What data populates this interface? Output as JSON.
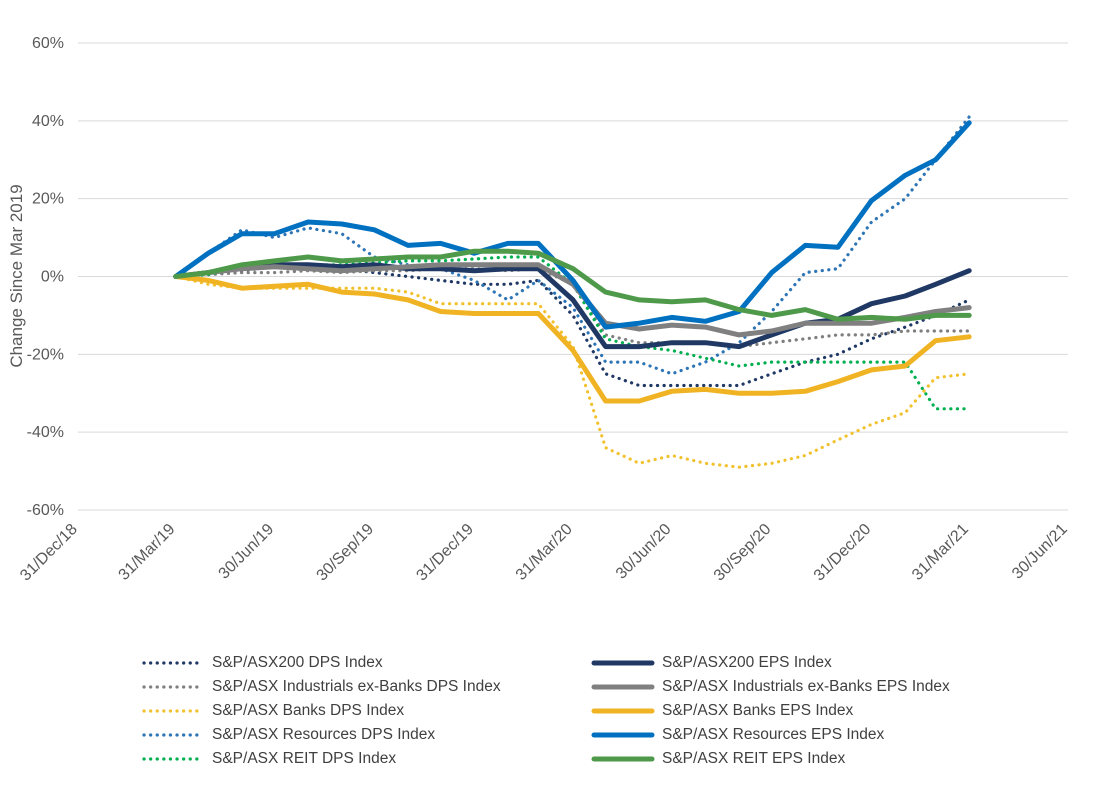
{
  "chart_data": {
    "type": "line",
    "title": "",
    "xlabel": "",
    "ylabel": "Change Since Mar 2019",
    "ylim": [
      -60,
      60
    ],
    "yticks": [
      -60,
      -40,
      -20,
      0,
      20,
      40,
      60
    ],
    "ytick_labels": [
      "-60%",
      "-40%",
      "-20%",
      "0%",
      "20%",
      "40%",
      "60%"
    ],
    "x_ticks": [
      "31/Dec/18",
      "31/Mar/19",
      "30/Jun/19",
      "30/Sep/19",
      "31/Dec/19",
      "31/Mar/20",
      "30/Jun/20",
      "30/Sep/20",
      "31/Dec/20",
      "31/Mar/21",
      "30/Jun/21"
    ],
    "x_range": [
      "31/Dec/18",
      "30/Jun/21"
    ],
    "grid": "horizontal",
    "legend_position": "bottom",
    "series": [
      {
        "name": "S&P/ASX200 DPS Index",
        "color": "#1F3864",
        "style": "dotted",
        "points": [
          [
            "31/Mar/19",
            0
          ],
          [
            "30/Apr/19",
            0.5
          ],
          [
            "31/May/19",
            1.5
          ],
          [
            "30/Jun/19",
            2.5
          ],
          [
            "31/Jul/19",
            3
          ],
          [
            "31/Aug/19",
            2
          ],
          [
            "30/Sep/19",
            1
          ],
          [
            "31/Oct/19",
            0
          ],
          [
            "30/Nov/19",
            -1
          ],
          [
            "31/Dec/19",
            -2
          ],
          [
            "31/Jan/20",
            -2
          ],
          [
            "28/Feb/20",
            -1
          ],
          [
            "31/Mar/20",
            -10
          ],
          [
            "30/Apr/20",
            -25
          ],
          [
            "31/May/20",
            -28
          ],
          [
            "30/Jun/20",
            -28
          ],
          [
            "31/Jul/20",
            -28
          ],
          [
            "31/Aug/20",
            -28
          ],
          [
            "30/Sep/20",
            -25
          ],
          [
            "31/Oct/20",
            -22
          ],
          [
            "30/Nov/20",
            -20
          ],
          [
            "31/Dec/20",
            -16
          ],
          [
            "31/Jan/21",
            -13
          ],
          [
            "28/Feb/21",
            -10
          ],
          [
            "31/Mar/21",
            -6
          ]
        ]
      },
      {
        "name": "S&P/ASX200 EPS Index",
        "color": "#203864",
        "style": "solid",
        "points": [
          [
            "31/Mar/19",
            0
          ],
          [
            "30/Apr/19",
            1
          ],
          [
            "31/May/19",
            2.5
          ],
          [
            "30/Jun/19",
            3
          ],
          [
            "31/Jul/19",
            3
          ],
          [
            "31/Aug/19",
            2.5
          ],
          [
            "30/Sep/19",
            3
          ],
          [
            "31/Oct/19",
            2
          ],
          [
            "30/Nov/19",
            2
          ],
          [
            "31/Dec/19",
            1.5
          ],
          [
            "31/Jan/20",
            2
          ],
          [
            "28/Feb/20",
            2
          ],
          [
            "31/Mar/20",
            -6
          ],
          [
            "30/Apr/20",
            -18
          ],
          [
            "31/May/20",
            -18
          ],
          [
            "30/Jun/20",
            -17
          ],
          [
            "31/Jul/20",
            -17
          ],
          [
            "31/Aug/20",
            -18
          ],
          [
            "30/Sep/20",
            -15
          ],
          [
            "31/Oct/20",
            -12
          ],
          [
            "30/Nov/20",
            -11
          ],
          [
            "31/Dec/20",
            -7
          ],
          [
            "31/Jan/21",
            -5
          ],
          [
            "28/Feb/21",
            -2
          ],
          [
            "31/Mar/21",
            1.5
          ]
        ]
      },
      {
        "name": "S&P/ASX Industrials ex-Banks DPS Index",
        "color": "#7F7F7F",
        "style": "dotted",
        "points": [
          [
            "31/Mar/19",
            0
          ],
          [
            "30/Apr/19",
            0.5
          ],
          [
            "31/May/19",
            1
          ],
          [
            "30/Jun/19",
            1
          ],
          [
            "31/Jul/19",
            1.5
          ],
          [
            "31/Aug/19",
            1
          ],
          [
            "30/Sep/19",
            1.5
          ],
          [
            "31/Oct/19",
            1.5
          ],
          [
            "30/Nov/19",
            2
          ],
          [
            "31/Dec/19",
            2
          ],
          [
            "31/Jan/20",
            1.5
          ],
          [
            "28/Feb/20",
            2
          ],
          [
            "31/Mar/20",
            -2
          ],
          [
            "30/Apr/20",
            -15
          ],
          [
            "31/May/20",
            -17
          ],
          [
            "30/Jun/20",
            -17
          ],
          [
            "31/Jul/20",
            -17
          ],
          [
            "31/Aug/20",
            -18
          ],
          [
            "30/Sep/20",
            -17
          ],
          [
            "31/Oct/20",
            -16
          ],
          [
            "30/Nov/20",
            -15
          ],
          [
            "31/Dec/20",
            -15
          ],
          [
            "31/Jan/21",
            -14
          ],
          [
            "28/Feb/21",
            -14
          ],
          [
            "31/Mar/21",
            -14
          ]
        ]
      },
      {
        "name": "S&P/ASX Industrials ex-Banks EPS Index",
        "color": "#808080",
        "style": "solid",
        "points": [
          [
            "31/Mar/19",
            0
          ],
          [
            "30/Apr/19",
            1
          ],
          [
            "31/May/19",
            2
          ],
          [
            "30/Jun/19",
            2.5
          ],
          [
            "31/Jul/19",
            2
          ],
          [
            "31/Aug/19",
            1.5
          ],
          [
            "30/Sep/19",
            2
          ],
          [
            "31/Oct/19",
            2.5
          ],
          [
            "30/Nov/19",
            3
          ],
          [
            "31/Dec/19",
            3
          ],
          [
            "31/Jan/20",
            3
          ],
          [
            "28/Feb/20",
            3
          ],
          [
            "31/Mar/20",
            -2
          ],
          [
            "30/Apr/20",
            -12
          ],
          [
            "31/May/20",
            -13.5
          ],
          [
            "30/Jun/20",
            -12.5
          ],
          [
            "31/Jul/20",
            -13
          ],
          [
            "31/Aug/20",
            -15
          ],
          [
            "30/Sep/20",
            -14
          ],
          [
            "31/Oct/20",
            -12
          ],
          [
            "30/Nov/20",
            -12
          ],
          [
            "31/Dec/20",
            -12
          ],
          [
            "31/Jan/21",
            -10.5
          ],
          [
            "28/Feb/21",
            -9
          ],
          [
            "31/Mar/21",
            -8
          ]
        ]
      },
      {
        "name": "S&P/ASX Banks DPS Index",
        "color": "#F2C12E",
        "style": "dotted",
        "points": [
          [
            "31/Mar/19",
            0
          ],
          [
            "30/Apr/19",
            -2
          ],
          [
            "31/May/19",
            -3
          ],
          [
            "30/Jun/19",
            -3
          ],
          [
            "31/Jul/19",
            -3
          ],
          [
            "31/Aug/19",
            -3
          ],
          [
            "30/Sep/19",
            -3
          ],
          [
            "31/Oct/19",
            -4
          ],
          [
            "30/Nov/19",
            -7
          ],
          [
            "31/Dec/19",
            -7
          ],
          [
            "31/Jan/20",
            -7
          ],
          [
            "28/Feb/20",
            -7
          ],
          [
            "31/Mar/20",
            -18
          ],
          [
            "30/Apr/20",
            -44
          ],
          [
            "31/May/20",
            -48
          ],
          [
            "30/Jun/20",
            -46
          ],
          [
            "31/Jul/20",
            -48
          ],
          [
            "31/Aug/20",
            -49
          ],
          [
            "30/Sep/20",
            -48
          ],
          [
            "31/Oct/20",
            -46
          ],
          [
            "30/Nov/20",
            -42
          ],
          [
            "31/Dec/20",
            -38
          ],
          [
            "31/Jan/21",
            -35
          ],
          [
            "28/Feb/21",
            -26
          ],
          [
            "31/Mar/21",
            -25
          ]
        ]
      },
      {
        "name": "S&P/ASX Banks EPS Index",
        "color": "#F0B323",
        "style": "solid",
        "points": [
          [
            "31/Mar/19",
            0
          ],
          [
            "30/Apr/19",
            -1
          ],
          [
            "31/May/19",
            -3
          ],
          [
            "30/Jun/19",
            -2.5
          ],
          [
            "31/Jul/19",
            -2
          ],
          [
            "31/Aug/19",
            -4
          ],
          [
            "30/Sep/19",
            -4.5
          ],
          [
            "31/Oct/19",
            -6
          ],
          [
            "30/Nov/19",
            -9
          ],
          [
            "31/Dec/19",
            -9.5
          ],
          [
            "31/Jan/20",
            -9.5
          ],
          [
            "28/Feb/20",
            -9.5
          ],
          [
            "31/Mar/20",
            -19
          ],
          [
            "30/Apr/20",
            -32
          ],
          [
            "31/May/20",
            -32
          ],
          [
            "30/Jun/20",
            -29.5
          ],
          [
            "31/Jul/20",
            -29
          ],
          [
            "31/Aug/20",
            -30
          ],
          [
            "30/Sep/20",
            -30
          ],
          [
            "31/Oct/20",
            -29.5
          ],
          [
            "30/Nov/20",
            -27
          ],
          [
            "31/Dec/20",
            -24
          ],
          [
            "31/Jan/21",
            -23
          ],
          [
            "28/Feb/21",
            -16.5
          ],
          [
            "31/Mar/21",
            -15.5
          ]
        ]
      },
      {
        "name": "S&P/ASX Resources DPS Index",
        "color": "#2E75B6",
        "style": "dotted",
        "points": [
          [
            "31/Mar/19",
            0
          ],
          [
            "30/Apr/19",
            6
          ],
          [
            "31/May/19",
            12
          ],
          [
            "30/Jun/19",
            10
          ],
          [
            "31/Jul/19",
            12.5
          ],
          [
            "31/Aug/19",
            11
          ],
          [
            "30/Sep/19",
            5
          ],
          [
            "31/Oct/19",
            3
          ],
          [
            "30/Nov/19",
            2
          ],
          [
            "31/Dec/19",
            -1
          ],
          [
            "31/Jan/20",
            -6
          ],
          [
            "28/Feb/20",
            -1
          ],
          [
            "31/Mar/20",
            -8
          ],
          [
            "30/Apr/20",
            -22
          ],
          [
            "31/May/20",
            -22
          ],
          [
            "30/Jun/20",
            -25
          ],
          [
            "31/Jul/20",
            -22
          ],
          [
            "31/Aug/20",
            -17
          ],
          [
            "30/Sep/20",
            -9
          ],
          [
            "31/Oct/20",
            1
          ],
          [
            "30/Nov/20",
            2
          ],
          [
            "31/Dec/20",
            14
          ],
          [
            "31/Jan/21",
            20
          ],
          [
            "28/Feb/21",
            30
          ],
          [
            "31/Mar/21",
            41
          ]
        ]
      },
      {
        "name": "S&P/ASX Resources EPS Index",
        "color": "#0070C0",
        "style": "solid",
        "points": [
          [
            "31/Mar/19",
            0
          ],
          [
            "30/Apr/19",
            6
          ],
          [
            "31/May/19",
            11
          ],
          [
            "30/Jun/19",
            11
          ],
          [
            "31/Jul/19",
            14
          ],
          [
            "31/Aug/19",
            13.5
          ],
          [
            "30/Sep/19",
            12
          ],
          [
            "31/Oct/19",
            8
          ],
          [
            "30/Nov/19",
            8.5
          ],
          [
            "31/Dec/19",
            6
          ],
          [
            "31/Jan/20",
            8.5
          ],
          [
            "28/Feb/20",
            8.5
          ],
          [
            "31/Mar/20",
            -1
          ],
          [
            "30/Apr/20",
            -13
          ],
          [
            "31/May/20",
            -12
          ],
          [
            "30/Jun/20",
            -10.5
          ],
          [
            "31/Jul/20",
            -11.5
          ],
          [
            "31/Aug/20",
            -9
          ],
          [
            "30/Sep/20",
            1
          ],
          [
            "31/Oct/20",
            8
          ],
          [
            "30/Nov/20",
            7.5
          ],
          [
            "31/Dec/20",
            19.5
          ],
          [
            "31/Jan/21",
            26
          ],
          [
            "28/Feb/21",
            30
          ],
          [
            "31/Mar/21",
            39.5
          ]
        ]
      },
      {
        "name": "S&P/ASX REIT DPS Index",
        "color": "#00B050",
        "style": "dotted",
        "points": [
          [
            "31/Mar/19",
            0
          ],
          [
            "30/Apr/19",
            0.5
          ],
          [
            "31/May/19",
            2
          ],
          [
            "30/Jun/19",
            2.5
          ],
          [
            "31/Jul/19",
            3
          ],
          [
            "31/Aug/19",
            3
          ],
          [
            "30/Sep/19",
            3.5
          ],
          [
            "31/Oct/19",
            4
          ],
          [
            "30/Nov/19",
            4
          ],
          [
            "31/Dec/19",
            4.5
          ],
          [
            "31/Jan/20",
            5
          ],
          [
            "28/Feb/20",
            5
          ],
          [
            "31/Mar/20",
            -2
          ],
          [
            "30/Apr/20",
            -16
          ],
          [
            "31/May/20",
            -18
          ],
          [
            "30/Jun/20",
            -19
          ],
          [
            "31/Jul/20",
            -21
          ],
          [
            "31/Aug/20",
            -23
          ],
          [
            "30/Sep/20",
            -22
          ],
          [
            "31/Oct/20",
            -22
          ],
          [
            "30/Nov/20",
            -22
          ],
          [
            "31/Dec/20",
            -22
          ],
          [
            "31/Jan/21",
            -22
          ],
          [
            "28/Feb/21",
            -34
          ],
          [
            "31/Mar/21",
            -34
          ]
        ]
      },
      {
        "name": "S&P/ASX REIT EPS Index",
        "color": "#4E9A4A",
        "style": "solid",
        "points": [
          [
            "31/Mar/19",
            0
          ],
          [
            "30/Apr/19",
            1
          ],
          [
            "31/May/19",
            3
          ],
          [
            "30/Jun/19",
            4
          ],
          [
            "31/Jul/19",
            5
          ],
          [
            "31/Aug/19",
            4
          ],
          [
            "30/Sep/19",
            4.5
          ],
          [
            "31/Oct/19",
            5
          ],
          [
            "30/Nov/19",
            5
          ],
          [
            "31/Dec/19",
            6.5
          ],
          [
            "31/Jan/20",
            6.5
          ],
          [
            "28/Feb/20",
            6
          ],
          [
            "31/Mar/20",
            2
          ],
          [
            "30/Apr/20",
            -4
          ],
          [
            "31/May/20",
            -6
          ],
          [
            "30/Jun/20",
            -6.5
          ],
          [
            "31/Jul/20",
            -6
          ],
          [
            "31/Aug/20",
            -8.5
          ],
          [
            "30/Sep/20",
            -10
          ],
          [
            "31/Oct/20",
            -8.5
          ],
          [
            "30/Nov/20",
            -11
          ],
          [
            "31/Dec/20",
            -10.5
          ],
          [
            "31/Jan/21",
            -11
          ],
          [
            "28/Feb/21",
            -10
          ],
          [
            "31/Mar/21",
            -10
          ]
        ]
      }
    ]
  }
}
